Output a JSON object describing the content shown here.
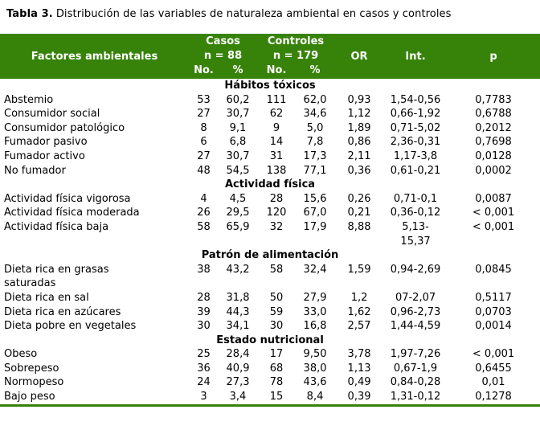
{
  "colors": {
    "header_green": "#37830a"
  },
  "title": {
    "label": "Tabla 3.",
    "text": "Distribución de las variables de naturaleza ambiental en casos y controles"
  },
  "header": {
    "factores": "Factores ambientales",
    "casos": "Casos",
    "casos_n": "n = 88",
    "controles": "Controles",
    "controles_n": "n = 179",
    "no": "No.",
    "pct": "%",
    "or": "OR",
    "int": "Int.",
    "p": "p"
  },
  "sections": [
    {
      "name": "Hábitos tóxicos",
      "rows": [
        {
          "label": "Abstemio",
          "c_no": "53",
          "c_pct": "60,2",
          "k_no": "111",
          "k_pct": "62,0",
          "or": "0,93",
          "int": "1,54-0,56",
          "p": "0,7783"
        },
        {
          "label": "Consumidor social",
          "c_no": "27",
          "c_pct": "30,7",
          "k_no": "62",
          "k_pct": "34,6",
          "or": "1,12",
          "int": "0,66-1,92",
          "p": "0,6788"
        },
        {
          "label": "Consumidor patológico",
          "c_no": "8",
          "c_pct": "9,1",
          "k_no": "9",
          "k_pct": "5,0",
          "or": "1,89",
          "int": "0,71-5,02",
          "p": "0,2012"
        },
        {
          "label": "Fumador pasivo",
          "c_no": "6",
          "c_pct": "6,8",
          "k_no": "14",
          "k_pct": "7,8",
          "or": "0,86",
          "int": "2,36-0,31",
          "p": "0,7698"
        },
        {
          "label": "Fumador activo",
          "c_no": "27",
          "c_pct": "30,7",
          "k_no": "31",
          "k_pct": "17,3",
          "or": "2,11",
          "int": "1,17-3,8",
          "p": "0,0128"
        },
        {
          "label": "No fumador",
          "c_no": "48",
          "c_pct": "54,5",
          "k_no": "138",
          "k_pct": "77,1",
          "or": "0,36",
          "int": "0,61-0,21",
          "p": "0,0002"
        }
      ]
    },
    {
      "name": "Actividad física",
      "rows": [
        {
          "label": "Actividad física vigorosa",
          "c_no": "4",
          "c_pct": "4,5",
          "k_no": "28",
          "k_pct": "15,6",
          "or": "0,26",
          "int": "0,71-0,1",
          "p": "0,0087"
        },
        {
          "label": "Actividad física moderada",
          "c_no": "26",
          "c_pct": "29,5",
          "k_no": "120",
          "k_pct": "67,0",
          "or": "0,21",
          "int": "0,36-0,12",
          "p": "< 0,001"
        },
        {
          "label": "Actividad física baja",
          "c_no": "58",
          "c_pct": "65,9",
          "k_no": "32",
          "k_pct": "17,9",
          "or": "8,88",
          "int": "5,13-\n15,37",
          "p": "< 0,001"
        }
      ]
    },
    {
      "name": "Patrón de alimentación",
      "rows": [
        {
          "label": "Dieta rica en grasas\nsaturadas",
          "c_no": "38",
          "c_pct": "43,2",
          "k_no": "58",
          "k_pct": "32,4",
          "or": "1,59",
          "int": "0,94-2,69",
          "p": "0,0845"
        },
        {
          "label": "Dieta rica en sal",
          "c_no": "28",
          "c_pct": "31,8",
          "k_no": "50",
          "k_pct": "27,9",
          "or": "1,2",
          "int": "07-2,07",
          "p": "0,5117"
        },
        {
          "label": "Dieta rica en azúcares",
          "c_no": "39",
          "c_pct": "44,3",
          "k_no": "59",
          "k_pct": "33,0",
          "or": "1,62",
          "int": "0,96-2,73",
          "p": "0,0703"
        },
        {
          "label": "Dieta pobre en vegetales",
          "c_no": "30",
          "c_pct": "34,1",
          "k_no": "30",
          "k_pct": "16,8",
          "or": "2,57",
          "int": "1,44-4,59",
          "p": "0,0014"
        }
      ]
    },
    {
      "name": "Estado nutricional",
      "rows": [
        {
          "label": "Obeso",
          "c_no": "25",
          "c_pct": "28,4",
          "k_no": "17",
          "k_pct": "9,50",
          "or": "3,78",
          "int": "1,97-7,26",
          "p": "< 0,001"
        },
        {
          "label": "Sobrepeso",
          "c_no": "36",
          "c_pct": "40,9",
          "k_no": "68",
          "k_pct": "38,0",
          "or": "1,13",
          "int": "0,67-1,9",
          "p": "0,6455"
        },
        {
          "label": "Normopeso",
          "c_no": "24",
          "c_pct": "27,3",
          "k_no": "78",
          "k_pct": "43,6",
          "or": "0,49",
          "int": "0,84-0,28",
          "p": "0,01"
        },
        {
          "label": "Bajo peso",
          "c_no": "3",
          "c_pct": "3,4",
          "k_no": "15",
          "k_pct": "8,4",
          "or": "0,39",
          "int": "1,31-0,12",
          "p": "0,1278"
        }
      ]
    }
  ]
}
